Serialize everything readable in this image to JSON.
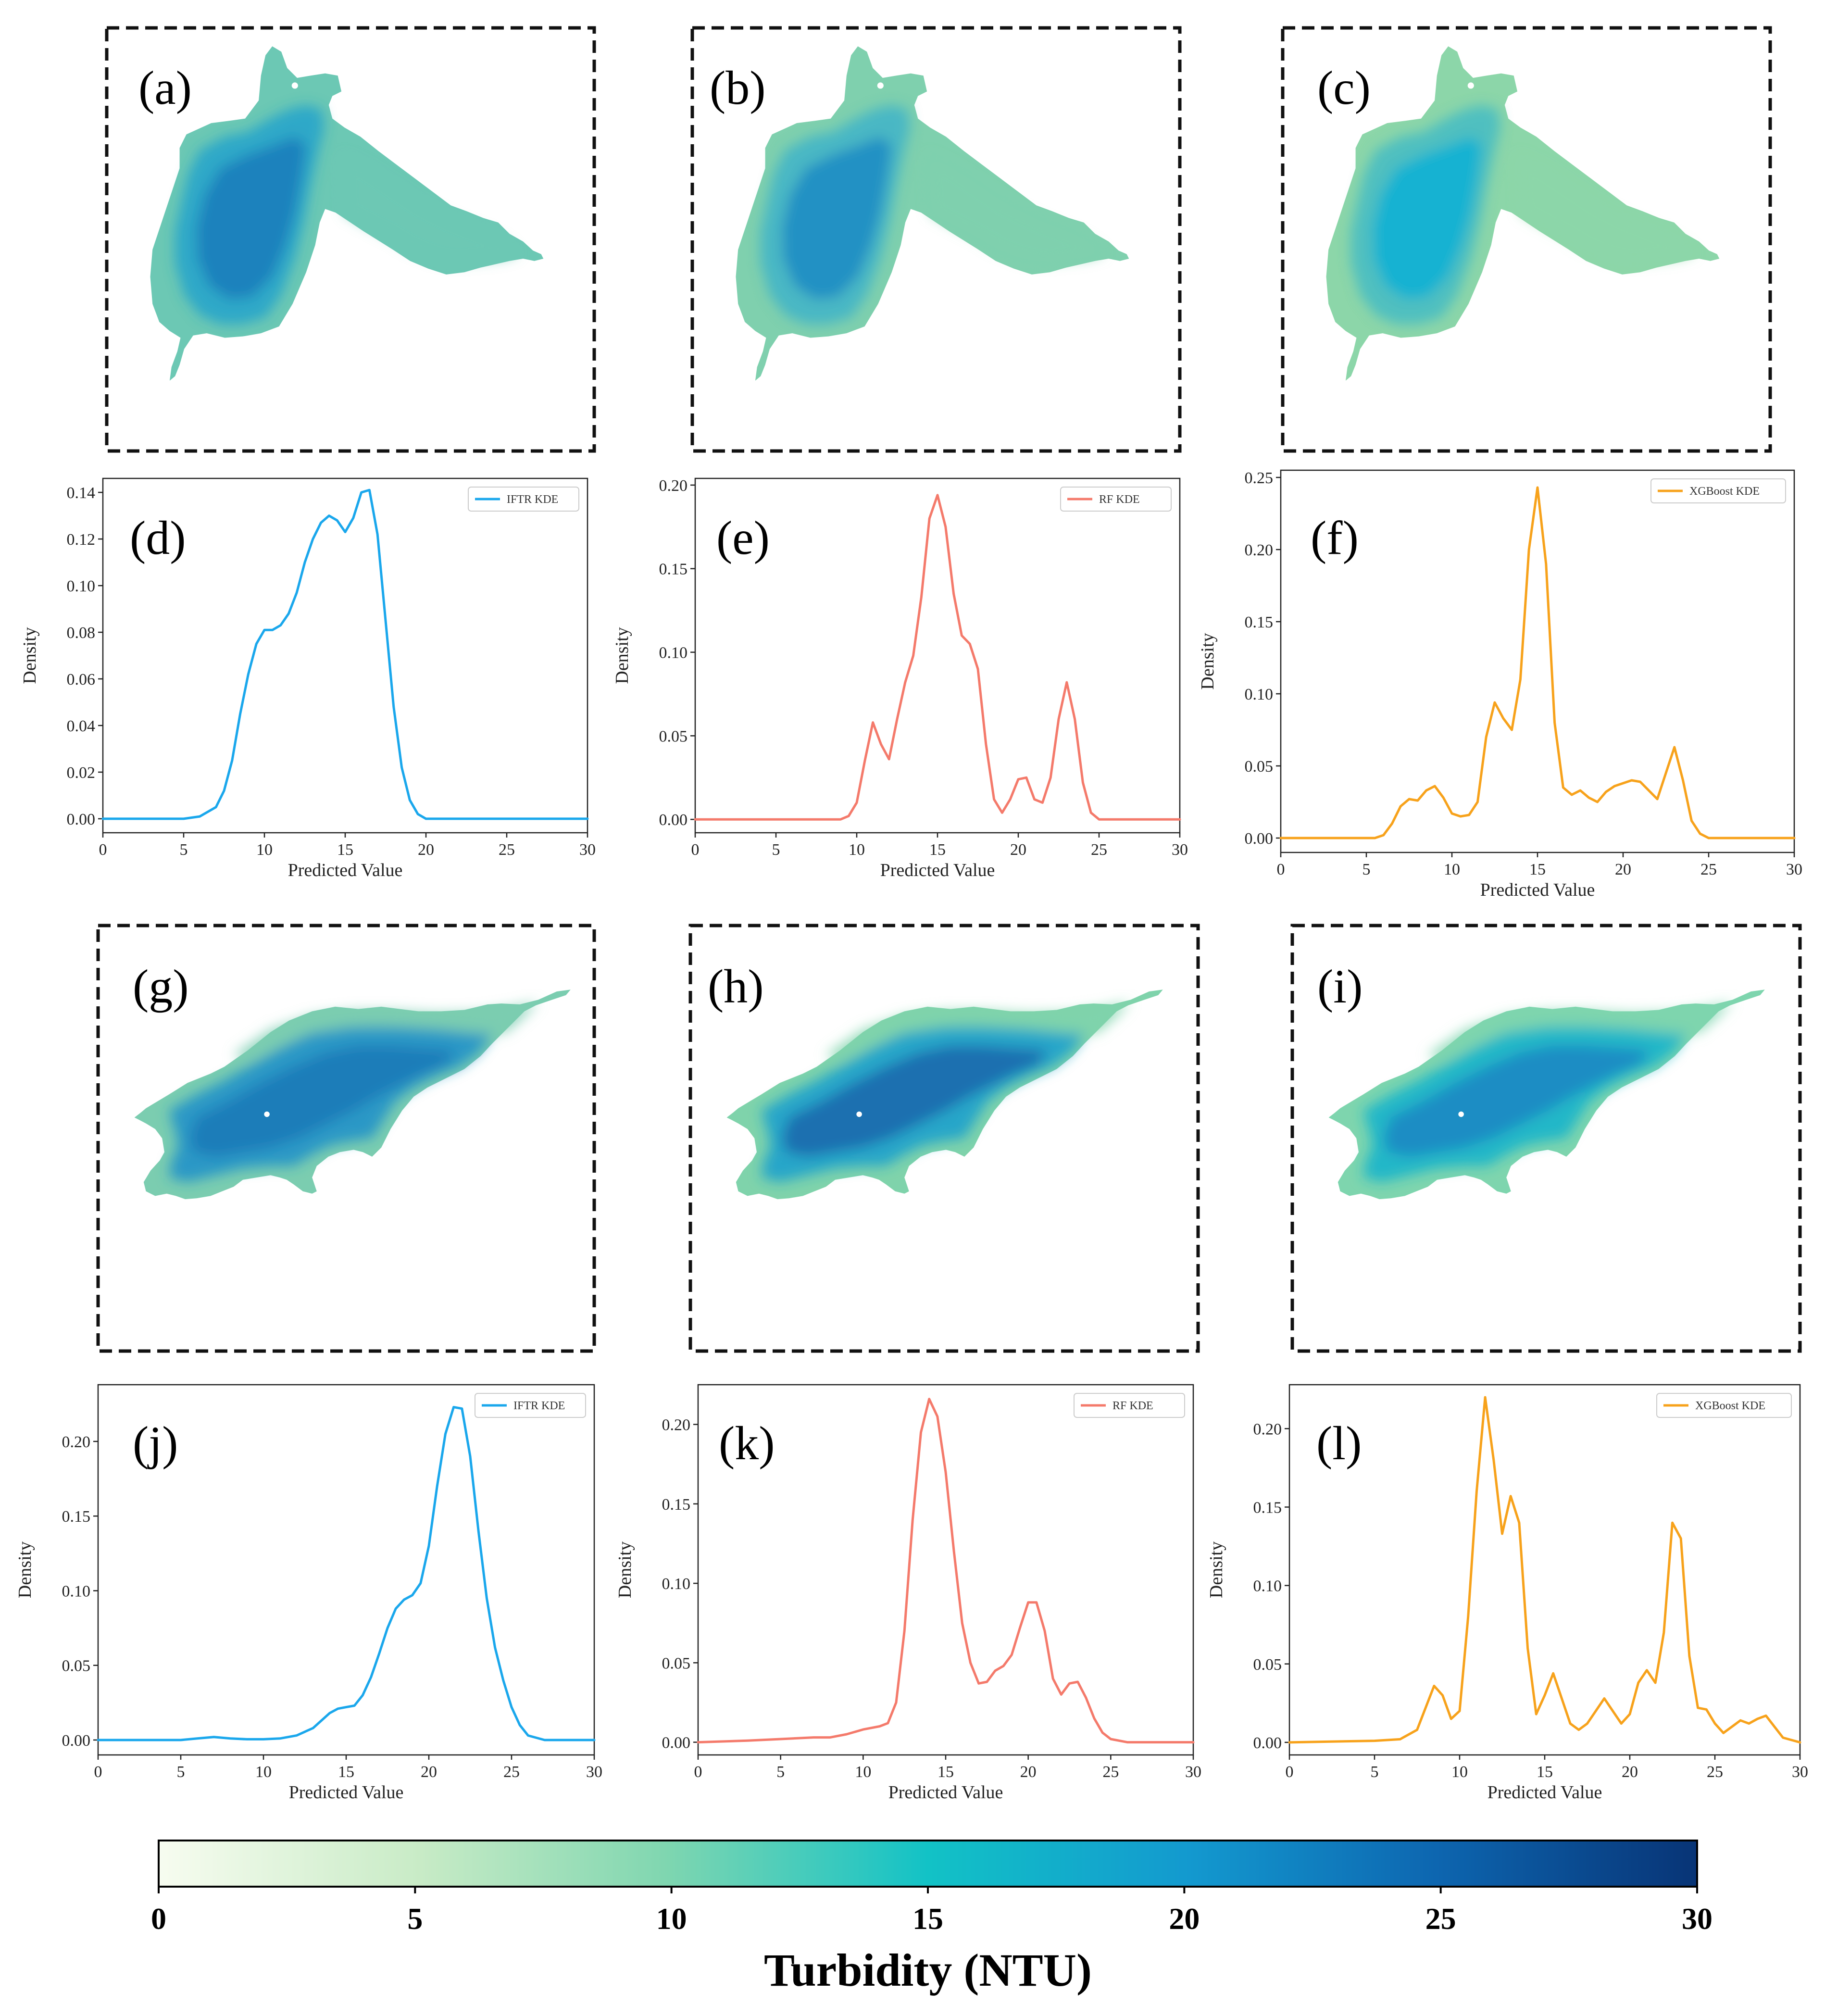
{
  "colors": {
    "IFTR": "#1aa7ec",
    "RF": "#f47a6b",
    "XGBoost": "#f7a21b",
    "frame": "#111111",
    "cmap_stops": [
      "#f7fcf0",
      "#c8ebc6",
      "#7fd6b0",
      "#12c2c6",
      "#1399cf",
      "#0d66b0",
      "#083476"
    ]
  },
  "maps": [
    {
      "label": "(a)",
      "lake": "lake1",
      "fill_deep": "#1b82bd",
      "fill_mid": "#2fa8c8",
      "fill_edge": "#6cc8b4"
    },
    {
      "label": "(b)",
      "lake": "lake1",
      "fill_deep": "#2491c4",
      "fill_mid": "#4ab7c4",
      "fill_edge": "#7fd0ae"
    },
    {
      "label": "(c)",
      "lake": "lake1",
      "fill_deep": "#19b2d2",
      "fill_mid": "#4fbfc0",
      "fill_edge": "#8cd6a9"
    },
    {
      "label": "(g)",
      "lake": "lake2",
      "fill_deep": "#1a7db9",
      "fill_mid": "#2a98c6",
      "fill_edge": "#7bcdb0"
    },
    {
      "label": "(h)",
      "lake": "lake2",
      "fill_deep": "#1a6fb0",
      "fill_mid": "#26a6c9",
      "fill_edge": "#7fd3ab"
    },
    {
      "label": "(i)",
      "lake": "lake2",
      "fill_deep": "#1c8dc4",
      "fill_mid": "#22b7c8",
      "fill_edge": "#7ed5ae"
    }
  ],
  "chart_data": [
    {
      "type": "line",
      "label": "(d)",
      "legend": "IFTR KDE",
      "color_key": "IFTR",
      "xlabel": "Predicted Value",
      "ylabel": "Density",
      "xlim": [
        0,
        30
      ],
      "ylim": [
        -0.006,
        0.146
      ],
      "xticks": [
        0,
        5,
        10,
        15,
        20,
        25,
        30
      ],
      "yticks": [
        0,
        0.02,
        0.04,
        0.06,
        0.08,
        0.1,
        0.12,
        0.14
      ],
      "ytick_labels": [
        "0.00",
        "0.02",
        "0.04",
        "0.06",
        "0.08",
        "0.10",
        "0.12",
        "0.14"
      ],
      "x": [
        0,
        5,
        6,
        7,
        7.5,
        8,
        8.5,
        9,
        9.5,
        10,
        10.5,
        11,
        11.5,
        12,
        12.5,
        13,
        13.5,
        14,
        14.5,
        15,
        15.5,
        16,
        16.5,
        17,
        17.5,
        18,
        18.5,
        19,
        19.5,
        20,
        21,
        30
      ],
      "y": [
        0,
        0,
        0.001,
        0.005,
        0.012,
        0.025,
        0.045,
        0.062,
        0.075,
        0.081,
        0.081,
        0.083,
        0.088,
        0.097,
        0.11,
        0.12,
        0.127,
        0.13,
        0.128,
        0.123,
        0.129,
        0.14,
        0.141,
        0.122,
        0.085,
        0.048,
        0.022,
        0.008,
        0.002,
        0,
        0,
        0
      ]
    },
    {
      "type": "line",
      "label": "(e)",
      "legend": "RF KDE",
      "color_key": "RF",
      "xlabel": "Predicted Value",
      "ylabel": "Density",
      "xlim": [
        0,
        30
      ],
      "ylim": [
        -0.008,
        0.204
      ],
      "xticks": [
        0,
        5,
        10,
        15,
        20,
        25,
        30
      ],
      "yticks": [
        0,
        0.05,
        0.1,
        0.15,
        0.2
      ],
      "ytick_labels": [
        "0.00",
        "0.05",
        "0.10",
        "0.15",
        "0.20"
      ],
      "x": [
        0,
        9,
        9.5,
        10,
        10.5,
        11,
        11.5,
        12,
        12.5,
        13,
        13.5,
        14,
        14.5,
        15,
        15.5,
        16,
        16.5,
        17,
        17.5,
        18,
        18.5,
        19,
        19.5,
        20,
        20.5,
        21,
        21.5,
        22,
        22.5,
        23,
        23.5,
        24,
        24.5,
        25,
        30
      ],
      "y": [
        0,
        0,
        0.002,
        0.01,
        0.035,
        0.058,
        0.045,
        0.036,
        0.06,
        0.082,
        0.098,
        0.133,
        0.18,
        0.194,
        0.175,
        0.135,
        0.11,
        0.105,
        0.09,
        0.045,
        0.012,
        0.004,
        0.012,
        0.024,
        0.025,
        0.012,
        0.01,
        0.025,
        0.06,
        0.082,
        0.06,
        0.022,
        0.004,
        0,
        0
      ]
    },
    {
      "type": "line",
      "label": "(f)",
      "legend": "XGBoost KDE",
      "color_key": "XGBoost",
      "xlabel": "Predicted Value",
      "ylabel": "Density",
      "xlim": [
        0,
        30
      ],
      "ylim": [
        -0.01,
        0.255
      ],
      "xticks": [
        0,
        5,
        10,
        15,
        20,
        25,
        30
      ],
      "yticks": [
        0,
        0.05,
        0.1,
        0.15,
        0.2,
        0.25
      ],
      "ytick_labels": [
        "0.00",
        "0.05",
        "0.10",
        "0.15",
        "0.20",
        "0.25"
      ],
      "x": [
        0,
        5.5,
        6,
        6.5,
        7,
        7.5,
        8,
        8.5,
        9,
        9.5,
        10,
        10.5,
        11,
        11.5,
        12,
        12.5,
        13,
        13.5,
        14,
        14.5,
        15,
        15.5,
        16,
        16.5,
        17,
        17.5,
        18,
        18.5,
        19,
        19.5,
        20,
        20.5,
        21,
        21.5,
        22,
        22.5,
        23,
        23.5,
        24,
        24.5,
        25,
        26,
        30
      ],
      "y": [
        0,
        0,
        0.002,
        0.01,
        0.022,
        0.027,
        0.026,
        0.033,
        0.036,
        0.028,
        0.017,
        0.015,
        0.016,
        0.025,
        0.07,
        0.094,
        0.083,
        0.075,
        0.11,
        0.2,
        0.243,
        0.19,
        0.08,
        0.035,
        0.03,
        0.033,
        0.028,
        0.025,
        0.032,
        0.036,
        0.038,
        0.04,
        0.039,
        0.033,
        0.027,
        0.045,
        0.063,
        0.04,
        0.012,
        0.003,
        0,
        0,
        0
      ]
    },
    {
      "type": "line",
      "label": "(j)",
      "legend": "IFTR KDE",
      "color_key": "IFTR",
      "xlabel": "Predicted Value",
      "ylabel": "Density",
      "xlim": [
        0,
        30
      ],
      "ylim": [
        -0.01,
        0.238
      ],
      "xticks": [
        0,
        5,
        10,
        15,
        20,
        25,
        30
      ],
      "yticks": [
        0,
        0.05,
        0.1,
        0.15,
        0.2
      ],
      "ytick_labels": [
        "0.00",
        "0.05",
        "0.10",
        "0.15",
        "0.20"
      ],
      "x": [
        0,
        5,
        6,
        7,
        8,
        9,
        10,
        11,
        12,
        13,
        13.5,
        14,
        14.5,
        15,
        15.5,
        16,
        16.5,
        17,
        17.5,
        18,
        18.5,
        19,
        19.5,
        20,
        20.5,
        21,
        21.5,
        22,
        22.5,
        23,
        23.5,
        24,
        24.5,
        25,
        25.5,
        26,
        27,
        30
      ],
      "y": [
        0,
        0,
        0.001,
        0.002,
        0.001,
        0.0005,
        0.0005,
        0.001,
        0.003,
        0.008,
        0.013,
        0.018,
        0.021,
        0.022,
        0.023,
        0.03,
        0.042,
        0.058,
        0.075,
        0.088,
        0.094,
        0.097,
        0.105,
        0.13,
        0.17,
        0.205,
        0.223,
        0.222,
        0.19,
        0.14,
        0.095,
        0.062,
        0.04,
        0.022,
        0.01,
        0.003,
        0,
        0
      ]
    },
    {
      "type": "line",
      "label": "(k)",
      "legend": "RF KDE",
      "color_key": "RF",
      "xlabel": "Predicted Value",
      "ylabel": "Density",
      "xlim": [
        0,
        30
      ],
      "ylim": [
        -0.008,
        0.225
      ],
      "xticks": [
        0,
        5,
        10,
        15,
        20,
        25,
        30
      ],
      "yticks": [
        0,
        0.05,
        0.1,
        0.15,
        0.2
      ],
      "ytick_labels": [
        "0.00",
        "0.05",
        "0.10",
        "0.15",
        "0.20"
      ],
      "x": [
        0,
        3,
        5,
        7,
        8,
        9,
        10,
        11,
        11.5,
        12,
        12.5,
        13,
        13.5,
        14,
        14.5,
        15,
        15.5,
        16,
        16.5,
        17,
        17.5,
        18,
        18.5,
        19,
        19.5,
        20,
        20.5,
        21,
        21.5,
        22,
        22.5,
        23,
        23.5,
        24,
        24.5,
        25,
        26,
        30
      ],
      "y": [
        0,
        0.001,
        0.002,
        0.003,
        0.003,
        0.005,
        0.008,
        0.01,
        0.012,
        0.025,
        0.07,
        0.14,
        0.195,
        0.216,
        0.205,
        0.17,
        0.12,
        0.075,
        0.05,
        0.037,
        0.038,
        0.045,
        0.048,
        0.055,
        0.072,
        0.088,
        0.088,
        0.07,
        0.04,
        0.03,
        0.037,
        0.038,
        0.028,
        0.015,
        0.006,
        0.002,
        0,
        0
      ]
    },
    {
      "type": "line",
      "label": "(l)",
      "legend": "XGBoost KDE",
      "color_key": "XGBoost",
      "xlabel": "Predicted Value",
      "ylabel": "Density",
      "xlim": [
        0,
        30
      ],
      "ylim": [
        -0.008,
        0.228
      ],
      "xticks": [
        0,
        5,
        10,
        15,
        20,
        25,
        30
      ],
      "yticks": [
        0,
        0.05,
        0.1,
        0.15,
        0.2
      ],
      "ytick_labels": [
        "0.00",
        "0.05",
        "0.10",
        "0.15",
        "0.20"
      ],
      "x": [
        0,
        5,
        6.5,
        7.5,
        8,
        8.5,
        9,
        9.5,
        10,
        10.5,
        11,
        11.5,
        12,
        12.5,
        13,
        13.5,
        14,
        14.5,
        15,
        15.5,
        16,
        16.5,
        17,
        17.5,
        18,
        18.5,
        19,
        19.5,
        20,
        20.5,
        21,
        21.5,
        22,
        22.5,
        23,
        23.5,
        24,
        24.5,
        25,
        25.5,
        26,
        26.5,
        27,
        27.5,
        28,
        28.5,
        29,
        30
      ],
      "y": [
        0,
        0.001,
        0.002,
        0.008,
        0.022,
        0.036,
        0.03,
        0.015,
        0.02,
        0.08,
        0.16,
        0.22,
        0.18,
        0.133,
        0.157,
        0.14,
        0.06,
        0.018,
        0.03,
        0.044,
        0.028,
        0.012,
        0.008,
        0.012,
        0.02,
        0.028,
        0.02,
        0.012,
        0.018,
        0.038,
        0.046,
        0.038,
        0.07,
        0.14,
        0.13,
        0.055,
        0.022,
        0.021,
        0.012,
        0.006,
        0.01,
        0.014,
        0.012,
        0.015,
        0.017,
        0.01,
        0.003,
        0
      ]
    }
  ],
  "colorbar": {
    "ticks": [
      "0",
      "5",
      "10",
      "15",
      "20",
      "25",
      "30"
    ],
    "min": 0,
    "max": 30,
    "title": "Turbidity (NTU)"
  }
}
